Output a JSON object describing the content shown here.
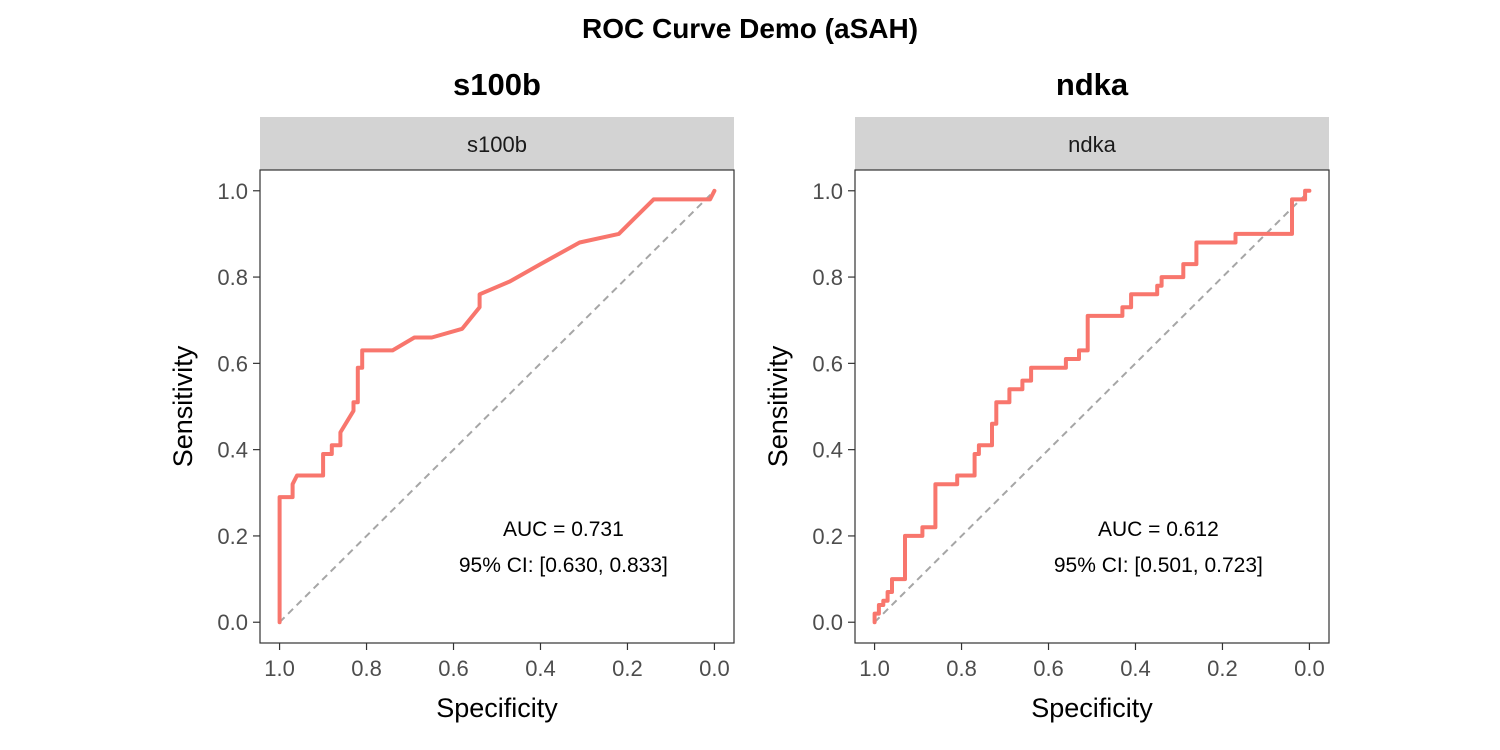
{
  "figure_title": "ROC Curve Demo (aSAH)",
  "colors": {
    "curve": "#F8766D",
    "diagonal": "#A6A6A6",
    "strip": "#D3D3D3",
    "panel_border": "#333333"
  },
  "chart_data": [
    {
      "type": "line",
      "title": "s100b",
      "facet_label": "s100b",
      "xlabel": "Specificity",
      "ylabel": "Sensitivity",
      "x_reversed": true,
      "xlim": [
        1.0,
        0.0
      ],
      "ylim": [
        0.0,
        1.0
      ],
      "x_ticks": [
        "1.0",
        "0.8",
        "0.6",
        "0.4",
        "0.2",
        "0.0"
      ],
      "y_ticks": [
        "0.0",
        "0.2",
        "0.4",
        "0.6",
        "0.8",
        "1.0"
      ],
      "grid": false,
      "annotation": [
        "AUC = 0.731",
        "95% CI: [0.630, 0.833]"
      ],
      "series": [
        {
          "x": [
            1.0,
            1.0,
            0.97,
            0.97,
            0.96,
            0.9,
            0.9,
            0.88,
            0.88,
            0.86,
            0.86,
            0.83,
            0.83,
            0.82,
            0.82,
            0.81,
            0.81,
            0.74,
            0.69,
            0.65,
            0.58,
            0.54,
            0.54,
            0.47,
            0.4,
            0.31,
            0.22,
            0.14,
            0.01,
            0.0
          ],
          "y": [
            0.0,
            0.29,
            0.29,
            0.32,
            0.34,
            0.34,
            0.39,
            0.39,
            0.41,
            0.41,
            0.44,
            0.49,
            0.51,
            0.51,
            0.59,
            0.59,
            0.63,
            0.63,
            0.66,
            0.66,
            0.68,
            0.73,
            0.76,
            0.79,
            0.83,
            0.88,
            0.9,
            0.98,
            0.98,
            1.0
          ]
        }
      ]
    },
    {
      "type": "line",
      "title": "ndka",
      "facet_label": "ndka",
      "xlabel": "Specificity",
      "ylabel": "Sensitivity",
      "x_reversed": true,
      "xlim": [
        1.0,
        0.0
      ],
      "ylim": [
        0.0,
        1.0
      ],
      "x_ticks": [
        "1.0",
        "0.8",
        "0.6",
        "0.4",
        "0.2",
        "0.0"
      ],
      "y_ticks": [
        "0.0",
        "0.2",
        "0.4",
        "0.6",
        "0.8",
        "1.0"
      ],
      "grid": false,
      "annotation": [
        "AUC = 0.612",
        "95% CI: [0.501, 0.723]"
      ],
      "series": [
        {
          "x": [
            1.0,
            1.0,
            0.99,
            0.99,
            0.98,
            0.98,
            0.97,
            0.97,
            0.96,
            0.96,
            0.93,
            0.93,
            0.89,
            0.89,
            0.86,
            0.86,
            0.81,
            0.81,
            0.77,
            0.77,
            0.76,
            0.76,
            0.73,
            0.73,
            0.72,
            0.72,
            0.69,
            0.69,
            0.66,
            0.66,
            0.64,
            0.64,
            0.56,
            0.56,
            0.53,
            0.53,
            0.51,
            0.51,
            0.43,
            0.43,
            0.41,
            0.41,
            0.35,
            0.35,
            0.34,
            0.34,
            0.29,
            0.29,
            0.26,
            0.26,
            0.17,
            0.17,
            0.04,
            0.04,
            0.01,
            0.01,
            0.0
          ],
          "y": [
            0.0,
            0.02,
            0.02,
            0.04,
            0.04,
            0.05,
            0.05,
            0.07,
            0.07,
            0.1,
            0.1,
            0.2,
            0.2,
            0.22,
            0.22,
            0.32,
            0.32,
            0.34,
            0.34,
            0.39,
            0.39,
            0.41,
            0.41,
            0.46,
            0.46,
            0.51,
            0.51,
            0.54,
            0.54,
            0.56,
            0.56,
            0.59,
            0.59,
            0.61,
            0.61,
            0.63,
            0.63,
            0.71,
            0.71,
            0.73,
            0.73,
            0.76,
            0.76,
            0.78,
            0.78,
            0.8,
            0.8,
            0.83,
            0.83,
            0.88,
            0.88,
            0.9,
            0.9,
            0.98,
            0.98,
            1.0,
            1.0
          ]
        }
      ]
    }
  ]
}
